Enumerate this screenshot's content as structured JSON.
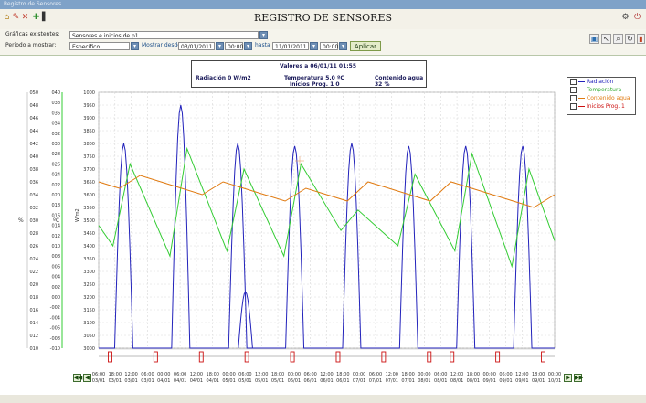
{
  "window": {
    "caption": "Registro de Sensores"
  },
  "app": {
    "title": "REGISTRO DE SENSORES"
  },
  "toolbar": {
    "graficas_label": "Gráficas existentes:",
    "graficas_value": "Sensores e inicios de p1",
    "periodo_label": "Periodo a mostrar:",
    "periodo_value": "Específico",
    "desde_label": "Mostrar desde",
    "desde_date": "03/01/2011",
    "desde_time": "00:00",
    "hasta_label": "hasta",
    "hasta_date": "11/01/2011",
    "hasta_time": "00:00",
    "aplicar_label": "Aplicar"
  },
  "info_box": {
    "header": "Valores a 06/01/11 01:55",
    "radiacion": "Radiación 0 W/m2",
    "temperatura": "Temperatura 5,0 ºC",
    "inicios": "Inicios Prog. 1 0",
    "contenido": "Contenido agua 32 %"
  },
  "axes": {
    "pct_label": "%",
    "deg_label": "ºC",
    "wm2_label": "W/m2",
    "pct_ticks": [
      "050",
      "048",
      "046",
      "044",
      "042",
      "040",
      "038",
      "036",
      "034",
      "032",
      "030",
      "028",
      "026",
      "024",
      "022",
      "020",
      "018",
      "016",
      "014",
      "012",
      "010"
    ],
    "deg_ticks": [
      "040",
      "038",
      "036",
      "034",
      "032",
      "030",
      "028",
      "026",
      "024",
      "022",
      "020",
      "018",
      "016",
      "014",
      "012",
      "010",
      "008",
      "006",
      "004",
      "002",
      "000",
      "-002",
      "-004",
      "-006",
      "-008",
      "-010"
    ],
    "wm2_ticks": [
      "1000",
      "3950",
      "3900",
      "3850",
      "3800",
      "3750",
      "3700",
      "3650",
      "3600",
      "3550",
      "3500",
      "3450",
      "3400",
      "3350",
      "3300",
      "3250",
      "3200",
      "3150",
      "3100",
      "3050",
      "3000"
    ],
    "time_top": [
      "06:00",
      "18:00",
      "12:00",
      "06:00",
      "00:00",
      "06:00",
      "12:00",
      "18:00",
      "00:00",
      "06:00",
      "12:00",
      "18:00",
      "00:00",
      "06:00",
      "12:00",
      "18:00",
      "00:00",
      "06:00",
      "12:00",
      "18:00",
      "00:00",
      "06:00",
      "12:00",
      "18:00",
      "00:00",
      "06:00",
      "12:00",
      "18:00",
      "00:00"
    ],
    "time_bottom": [
      "03/01",
      "03/01",
      "03/01",
      "03/01",
      "04/01",
      "04/01",
      "04/01",
      "04/01",
      "05/01",
      "05/01",
      "05/01",
      "05/01",
      "06/01",
      "06/01",
      "06/01",
      "06/01",
      "07/01",
      "07/01",
      "07/01",
      "07/01",
      "08/01",
      "08/01",
      "08/01",
      "08/01",
      "09/01",
      "09/01",
      "09/01",
      "09/01",
      "10/01"
    ]
  },
  "legend": [
    {
      "label": "Radiación",
      "color": "#2222bb"
    },
    {
      "label": "Temperatura",
      "color": "#33cc33"
    },
    {
      "label": "Contenido agua",
      "color": "#e07a10"
    },
    {
      "label": "Inicios Prog. 1",
      "color": "#cc1111"
    }
  ],
  "chart_data": {
    "type": "line",
    "series": [
      {
        "name": "Radiación",
        "color": "#2222bb",
        "unit": "W/m2",
        "days": [
          {
            "peak": 800
          },
          {
            "peak": 950
          },
          {
            "peak": 800
          },
          {
            "peak": 790
          },
          {
            "peak": 800
          },
          {
            "peak": 790
          },
          {
            "peak": 790
          },
          {
            "peak": 790
          }
        ],
        "cloudy_day_peak": 220
      },
      {
        "name": "Temperatura",
        "color": "#33cc33",
        "unit": "ºC",
        "daily_min": [
          10,
          8,
          9,
          8,
          13,
          10,
          9,
          6,
          11
        ],
        "daily_max": [
          26,
          29,
          25,
          26,
          17,
          24,
          28,
          25,
          24
        ]
      },
      {
        "name": "Contenido agua",
        "color": "#e07a10",
        "unit": "%",
        "values": [
          36,
          35,
          37,
          36,
          35,
          34,
          36,
          35,
          34,
          33,
          35,
          34,
          33,
          36,
          35,
          34,
          33,
          36,
          35,
          34,
          33,
          32,
          34
        ]
      },
      {
        "name": "Inicios Prog. 1",
        "color": "#cc1111",
        "values": [
          1,
          0,
          1,
          0,
          1,
          0,
          1,
          0,
          1,
          0,
          1,
          0,
          1,
          0,
          1,
          1,
          0,
          1,
          0,
          1
        ]
      }
    ]
  }
}
